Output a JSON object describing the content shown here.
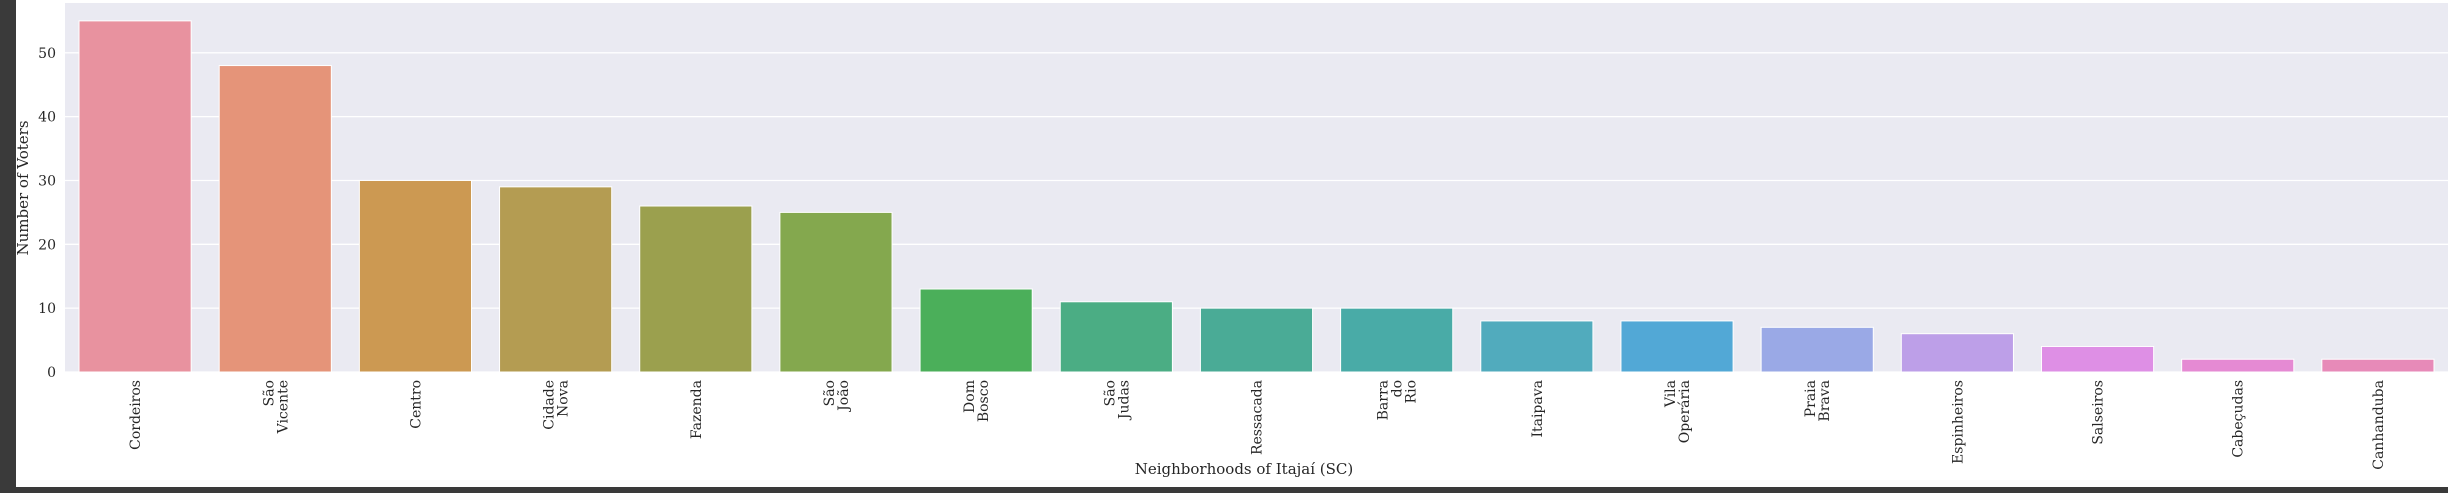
{
  "chart_data": {
    "type": "bar",
    "title": "",
    "xlabel": "Neighborhoods of Itajaí (SC)",
    "ylabel": "Number of Voters",
    "ylim": [
      0,
      57.8
    ],
    "yticks": [
      0,
      10,
      20,
      30,
      40,
      50
    ],
    "grid": true,
    "legend": "none",
    "categories": [
      "Cordeiros",
      "São Vicente",
      "Centro",
      "Cidade Nova",
      "Fazenda",
      "São João",
      "Dom Bosco",
      "São Judas",
      "Ressacada",
      "Barra do Rio",
      "Itaipava",
      "Vila Operária",
      "Praia Brava",
      "Espinheiros",
      "Salseiros",
      "Cabeçudas",
      "Canhanduba"
    ],
    "values": [
      55,
      48,
      30,
      29,
      26,
      25,
      13,
      11,
      10,
      10,
      8,
      8,
      7,
      6,
      4,
      2,
      2
    ],
    "colors": [
      "#e8929f",
      "#e59479",
      "#cc9952",
      "#b49c52",
      "#9ba04e",
      "#84a84e",
      "#4baf5a",
      "#4bad84",
      "#4aab96",
      "#49aba7",
      "#51abbd",
      "#52a8d6",
      "#9aa9e6",
      "#bd9fe8",
      "#de8fe5",
      "#e58ad3",
      "#e78ab8"
    ],
    "plot_background": "#eaeaf2",
    "grid_color": "#ffffff"
  }
}
